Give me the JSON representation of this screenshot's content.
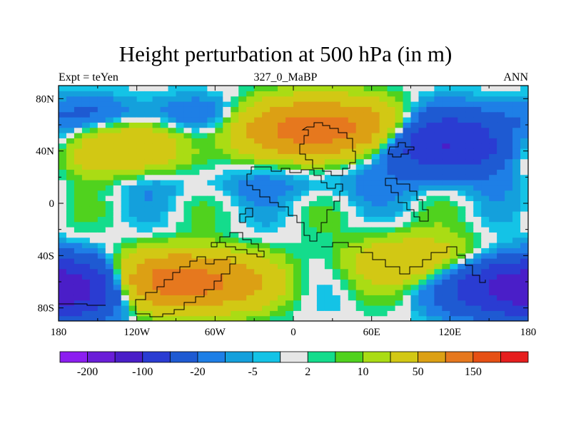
{
  "chart_data": {
    "type": "filled-contour-map",
    "title": "Height perturbation at 500 hPa (in m)",
    "left_string": "Expt = teYen",
    "center_string": "327_0_MaBP",
    "right_string": "ANN",
    "x_axis": {
      "range": [
        -180,
        180
      ],
      "ticks": [
        -180,
        -120,
        -60,
        0,
        60,
        120,
        180
      ],
      "tick_labels": [
        "180",
        "120W",
        "60W",
        "0",
        "60E",
        "120E",
        "180"
      ]
    },
    "y_axis": {
      "range": [
        -90,
        90
      ],
      "ticks": [
        -80,
        -40,
        0,
        40,
        80
      ],
      "tick_labels": [
        "80S",
        "40S",
        "0",
        "40N",
        "80N"
      ]
    },
    "contour_levels": [
      -200,
      -150,
      -100,
      -50,
      -20,
      -10,
      -5,
      -2,
      2,
      5,
      10,
      20,
      50,
      100,
      150,
      200
    ],
    "colorbar": {
      "colors": [
        "#8c1ef0",
        "#6a1ed8",
        "#4a1ec8",
        "#2a3cd2",
        "#1e5ad2",
        "#1e7fe6",
        "#14a0dc",
        "#14c3e6",
        "#e6e6e6",
        "#14dc8c",
        "#50d21e",
        "#aadc14",
        "#d2c814",
        "#dca014",
        "#e6781e",
        "#e65014",
        "#e61e1e"
      ],
      "labels": [
        "-200",
        "-100",
        "-20",
        "-5",
        "2",
        "10",
        "50",
        "150"
      ],
      "label_boundaries": [
        -200,
        -100,
        -20,
        -5,
        2,
        10,
        50,
        150
      ]
    },
    "field_features": [
      {
        "name": "north-central-high",
        "lon": 20,
        "lat": 58,
        "value": 150
      },
      {
        "name": "north-atlantic-high",
        "lon": -140,
        "lat": 42,
        "value": 50
      },
      {
        "name": "north-pacific-low",
        "lon": 120,
        "lat": 45,
        "value": -100
      },
      {
        "name": "subpolar-band",
        "lon": -120,
        "lat": 68,
        "value": -20
      },
      {
        "name": "tropical-band",
        "lon": 0,
        "lat": 15,
        "value": -10
      },
      {
        "name": "southern-high",
        "lon": -85,
        "lat": -60,
        "value": 150
      },
      {
        "name": "southern-low-west",
        "lon": -180,
        "lat": -65,
        "value": -150
      },
      {
        "name": "southern-high-east",
        "lon": 100,
        "lat": -45,
        "value": 50
      },
      {
        "name": "southern-low-east",
        "lon": 150,
        "lat": -50,
        "value": -20
      }
    ]
  }
}
